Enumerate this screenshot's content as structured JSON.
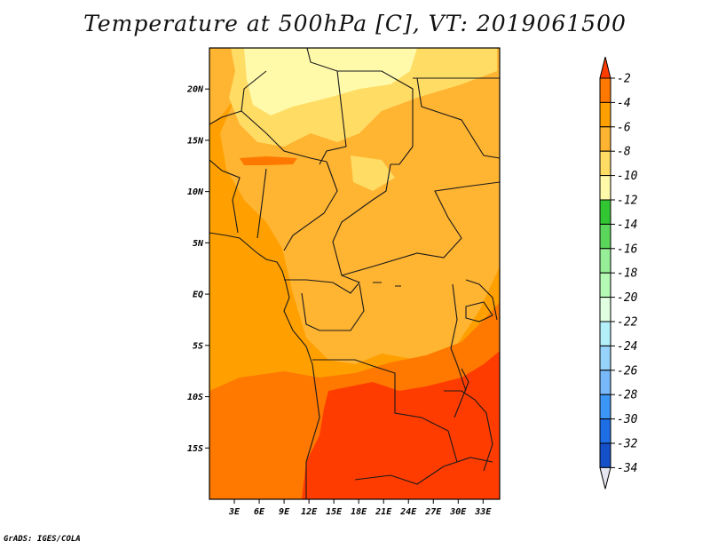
{
  "title": "Temperature at 500hPa [C], VT: 2019061500",
  "credit": "GrADS: IGES/COLA",
  "map": {
    "lon_range": [
      0,
      35
    ],
    "lat_range": [
      -20,
      24
    ],
    "lat_ticks": [
      {
        "value": 20,
        "label": "20N"
      },
      {
        "value": 15,
        "label": "15N"
      },
      {
        "value": 10,
        "label": "10N"
      },
      {
        "value": 5,
        "label": "5N"
      },
      {
        "value": 0,
        "label": "EQ"
      },
      {
        "value": -5,
        "label": "5S"
      },
      {
        "value": -10,
        "label": "10S"
      },
      {
        "value": -15,
        "label": "15S"
      }
    ],
    "lon_ticks": [
      {
        "value": 3,
        "label": "3E"
      },
      {
        "value": 6,
        "label": "6E"
      },
      {
        "value": 9,
        "label": "9E"
      },
      {
        "value": 12,
        "label": "12E"
      },
      {
        "value": 15,
        "label": "15E"
      },
      {
        "value": 18,
        "label": "18E"
      },
      {
        "value": 21,
        "label": "21E"
      },
      {
        "value": 24,
        "label": "24E"
      },
      {
        "value": 27,
        "label": "27E"
      },
      {
        "value": 30,
        "label": "30E"
      },
      {
        "value": 33,
        "label": "33E"
      }
    ]
  },
  "colorbar": {
    "labels": [
      "-2",
      "-4",
      "-6",
      "-8",
      "-10",
      "-12",
      "-14",
      "-16",
      "-18",
      "-20",
      "-22",
      "-24",
      "-26",
      "-28",
      "-30",
      "-32",
      "-34"
    ],
    "colors": [
      "#ff3c00",
      "#ff7800",
      "#ffa000",
      "#ffb432",
      "#ffdc64",
      "#fffaaa",
      "#33c633",
      "#5ad65a",
      "#96ef96",
      "#b4fab4",
      "#e1ffe1",
      "#b4f0fa",
      "#96d2fa",
      "#78b9fa",
      "#3c96f5",
      "#1e6ee6",
      "#1450c8",
      "#0a1478",
      "#e6e6f0"
    ]
  },
  "colors": {
    "frame": "#000000",
    "border": "#1a1a1a"
  }
}
